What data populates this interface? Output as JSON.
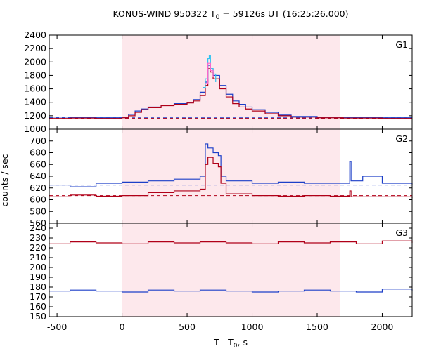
{
  "chart_data": {
    "type": "line",
    "title": "KONUS-WIND 950322 T",
    "title_sub": "0",
    "title_rest": " = 59126s UT (16:25:26.000)",
    "xlabel": "T - T",
    "xlabel_sub": "0",
    "xlabel_rest": ", s",
    "ylabel": "counts / sec",
    "xlim": [
      -560,
      2230
    ],
    "x_ticks": [
      -500,
      0,
      500,
      1000,
      1500,
      2000
    ],
    "highlight_interval": [
      0,
      1675
    ],
    "colors": {
      "highlight": "#fde8ec",
      "red_series": "#b00018",
      "blue_series": "#1c3fc8",
      "cyan_series": "#33c3f0",
      "pink_series": "#ff66cc",
      "background_dashed_blue": "#1c3fc8",
      "background_dashed_red": "#b00018"
    },
    "panels": [
      {
        "label": "G1",
        "ylim": [
          1000,
          2400
        ],
        "y_ticks": [
          1000,
          1200,
          1400,
          1600,
          1800,
          2000,
          2200,
          2400
        ],
        "background_levels": [
          1170,
          1160
        ],
        "series": [
          {
            "color_key": "blue_series",
            "points": [
              [
                -560,
                1180
              ],
              [
                -400,
                1175
              ],
              [
                -200,
                1170
              ],
              [
                0,
                1180
              ],
              [
                50,
                1220
              ],
              [
                100,
                1270
              ],
              [
                150,
                1300
              ],
              [
                200,
                1330
              ],
              [
                300,
                1360
              ],
              [
                400,
                1380
              ],
              [
                500,
                1400
              ],
              [
                550,
                1440
              ],
              [
                600,
                1550
              ],
              [
                640,
                1700
              ],
              [
                660,
                1950
              ],
              [
                680,
                1900
              ],
              [
                700,
                1800
              ],
              [
                750,
                1650
              ],
              [
                800,
                1520
              ],
              [
                850,
                1420
              ],
              [
                900,
                1370
              ],
              [
                950,
                1330
              ],
              [
                1000,
                1290
              ],
              [
                1100,
                1250
              ],
              [
                1200,
                1210
              ],
              [
                1300,
                1190
              ],
              [
                1500,
                1180
              ],
              [
                1700,
                1175
              ],
              [
                2000,
                1170
              ],
              [
                2230,
                1170
              ]
            ]
          },
          {
            "color_key": "red_series",
            "points": [
              [
                -560,
                1160
              ],
              [
                -400,
                1165
              ],
              [
                -200,
                1160
              ],
              [
                0,
                1170
              ],
              [
                50,
                1200
              ],
              [
                100,
                1250
              ],
              [
                150,
                1290
              ],
              [
                200,
                1320
              ],
              [
                300,
                1350
              ],
              [
                400,
                1370
              ],
              [
                500,
                1390
              ],
              [
                550,
                1420
              ],
              [
                600,
                1500
              ],
              [
                640,
                1650
              ],
              [
                660,
                1900
              ],
              [
                680,
                1850
              ],
              [
                700,
                1750
              ],
              [
                750,
                1600
              ],
              [
                800,
                1480
              ],
              [
                850,
                1380
              ],
              [
                900,
                1330
              ],
              [
                950,
                1300
              ],
              [
                1000,
                1270
              ],
              [
                1100,
                1230
              ],
              [
                1200,
                1200
              ],
              [
                1300,
                1180
              ],
              [
                1500,
                1170
              ],
              [
                1700,
                1165
              ],
              [
                2000,
                1160
              ],
              [
                2230,
                1160
              ]
            ]
          },
          {
            "color_key": "cyan_series",
            "points": [
              [
                620,
                1620
              ],
              [
                640,
                1750
              ],
              [
                660,
                2050
              ],
              [
                670,
                2100
              ],
              [
                680,
                1900
              ],
              [
                700,
                1820
              ],
              [
                720,
                1700
              ]
            ]
          },
          {
            "color_key": "pink_series",
            "points": [
              [
                640,
                1680
              ],
              [
                660,
                1980
              ],
              [
                680,
                1870
              ],
              [
                700,
                1780
              ]
            ]
          }
        ]
      },
      {
        "label": "G2",
        "ylim": [
          560,
          720
        ],
        "y_ticks": [
          560,
          580,
          600,
          620,
          640,
          660,
          680,
          700
        ],
        "background_levels": [
          625,
          607
        ],
        "series": [
          {
            "color_key": "blue_series",
            "points": [
              [
                -560,
                625
              ],
              [
                -400,
                622
              ],
              [
                -200,
                628
              ],
              [
                0,
                630
              ],
              [
                200,
                632
              ],
              [
                400,
                635
              ],
              [
                600,
                640
              ],
              [
                640,
                695
              ],
              [
                660,
                688
              ],
              [
                700,
                680
              ],
              [
                740,
                675
              ],
              [
                760,
                640
              ],
              [
                800,
                632
              ],
              [
                1000,
                628
              ],
              [
                1200,
                630
              ],
              [
                1400,
                628
              ],
              [
                1600,
                628
              ],
              [
                1750,
                665
              ],
              [
                1760,
                632
              ],
              [
                1850,
                640
              ],
              [
                2000,
                628
              ],
              [
                2230,
                626
              ]
            ]
          },
          {
            "color_key": "red_series",
            "points": [
              [
                -560,
                605
              ],
              [
                -400,
                608
              ],
              [
                -200,
                606
              ],
              [
                0,
                607
              ],
              [
                200,
                612
              ],
              [
                400,
                615
              ],
              [
                600,
                618
              ],
              [
                640,
                660
              ],
              [
                660,
                672
              ],
              [
                700,
                662
              ],
              [
                740,
                656
              ],
              [
                760,
                628
              ],
              [
                800,
                610
              ],
              [
                1000,
                607
              ],
              [
                1200,
                606
              ],
              [
                1400,
                607
              ],
              [
                1600,
                606
              ],
              [
                1750,
                615
              ],
              [
                1760,
                605
              ],
              [
                2000,
                605
              ],
              [
                2230,
                603
              ]
            ]
          }
        ]
      },
      {
        "label": "G3",
        "ylim": [
          150,
          245
        ],
        "y_ticks": [
          150,
          160,
          170,
          180,
          190,
          200,
          210,
          220,
          230,
          240
        ],
        "background_levels": [],
        "series": [
          {
            "color_key": "red_series",
            "points": [
              [
                -560,
                224
              ],
              [
                -400,
                226
              ],
              [
                -200,
                225
              ],
              [
                0,
                224
              ],
              [
                200,
                226
              ],
              [
                400,
                225
              ],
              [
                600,
                226
              ],
              [
                800,
                225
              ],
              [
                1000,
                224
              ],
              [
                1200,
                226
              ],
              [
                1400,
                225
              ],
              [
                1600,
                226
              ],
              [
                1800,
                224
              ],
              [
                2000,
                227
              ],
              [
                2230,
                225
              ]
            ]
          },
          {
            "color_key": "blue_series",
            "points": [
              [
                -560,
                176
              ],
              [
                -400,
                177
              ],
              [
                -200,
                176
              ],
              [
                0,
                175
              ],
              [
                200,
                177
              ],
              [
                400,
                176
              ],
              [
                600,
                177
              ],
              [
                800,
                176
              ],
              [
                1000,
                175
              ],
              [
                1200,
                176
              ],
              [
                1400,
                177
              ],
              [
                1600,
                176
              ],
              [
                1800,
                175
              ],
              [
                2000,
                178
              ],
              [
                2230,
                176
              ]
            ]
          }
        ]
      }
    ]
  }
}
